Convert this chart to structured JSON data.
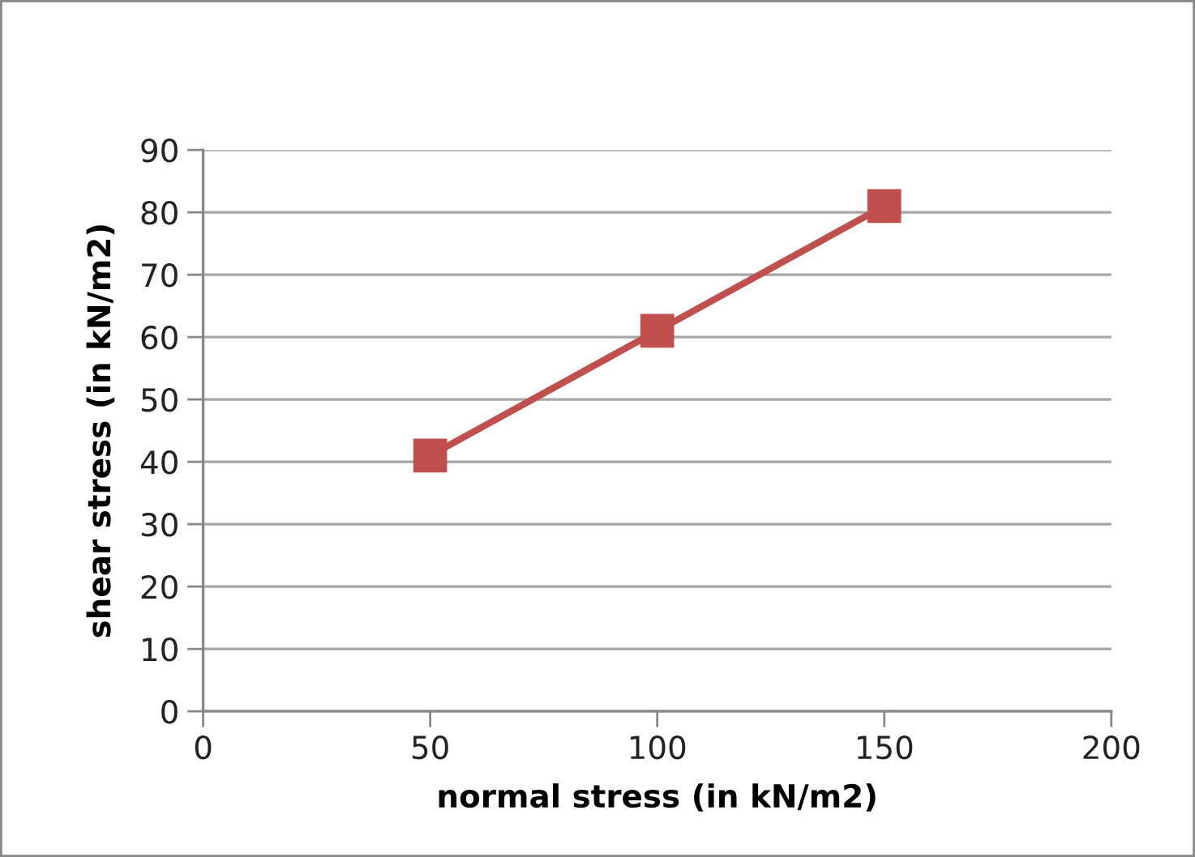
{
  "chart_data": {
    "type": "line",
    "xlabel": "normal stress (in kN/m2)",
    "ylabel": "shear stress (in kN/m2)",
    "x": [
      50,
      100,
      150
    ],
    "series": [
      {
        "color": "#c0504d",
        "values": [
          41,
          61,
          81
        ]
      }
    ],
    "marker": "square",
    "line_style": "solid",
    "xlim": [
      0,
      200
    ],
    "xticks": [
      0,
      50,
      100,
      150,
      200
    ],
    "ylim": [
      0,
      90
    ],
    "yticks": [
      0,
      10,
      20,
      30,
      40,
      50,
      60,
      70,
      80,
      90
    ],
    "grid": "y"
  }
}
